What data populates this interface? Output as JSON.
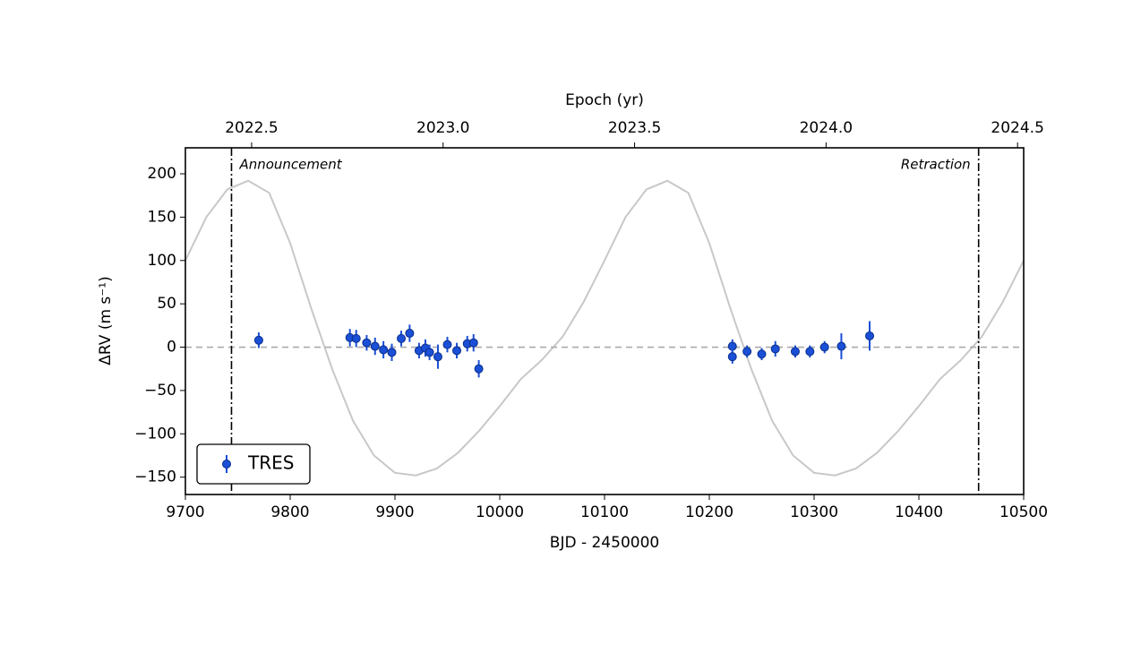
{
  "chart_data": {
    "type": "scatter",
    "xlabel": "BJD - 2450000",
    "ylabel": "ΔRV (m s⁻¹)",
    "x2label": "Epoch (yr)",
    "xlim": [
      9700,
      10500
    ],
    "xticks": [
      9700,
      9800,
      9900,
      10000,
      10100,
      10200,
      10300,
      10400,
      10500
    ],
    "ylim": [
      -170,
      230
    ],
    "yticks": [
      {
        "value": -150,
        "label": "−150"
      },
      {
        "value": -100,
        "label": "−100"
      },
      {
        "value": -50,
        "label": "−50"
      },
      0,
      50,
      100,
      150,
      200
    ],
    "x2lim": [
      2022.327,
      2024.516
    ],
    "x2ticks": [
      2022.5,
      {
        "value": 2023,
        "label": "2023.0"
      },
      2023.5,
      {
        "value": 2024,
        "label": "2024.0"
      },
      2024.5
    ],
    "legend": "lower left",
    "series": [
      {
        "name": "TRES",
        "color": "#1a4fd6",
        "x": [
          9770,
          9857,
          9863,
          9873,
          9881,
          9889,
          9897,
          9906,
          9914,
          9923,
          9929,
          9933,
          9941,
          9950,
          9959,
          9969,
          9975,
          9980,
          10222,
          10222,
          10236,
          10250,
          10263,
          10282,
          10296,
          10310,
          10326,
          10353
        ],
        "values": [
          8,
          11,
          10,
          5,
          1,
          -3,
          -6,
          10,
          16,
          -4,
          -1,
          -6,
          -11,
          3,
          -4,
          4,
          5,
          -25,
          1,
          -11,
          -5,
          -8,
          -2,
          -5,
          -5,
          0,
          1,
          13
        ],
        "errors": [
          9,
          10,
          10,
          9,
          10,
          10,
          10,
          9,
          10,
          9,
          10,
          9,
          14,
          9,
          9,
          9,
          10,
          10,
          8,
          8,
          7,
          7,
          9,
          7,
          7,
          7,
          15,
          17
        ]
      }
    ],
    "model": {
      "color": "#c8c8c8",
      "x": [
        9700,
        9720,
        9740,
        9760,
        9780,
        9800,
        9820,
        9840,
        9860,
        9880,
        9900,
        9920,
        9940,
        9960,
        9980,
        10000,
        10020,
        10040,
        10060,
        10080,
        10100,
        10120,
        10140,
        10160,
        10180,
        10200,
        10220,
        10240,
        10260,
        10280,
        10300,
        10320,
        10340,
        10360,
        10380,
        10400,
        10420,
        10440,
        10460,
        10480,
        10500
      ],
      "values": [
        100,
        150,
        182,
        192,
        178,
        120,
        45,
        -25,
        -85,
        -125,
        -145,
        -148,
        -140,
        -122,
        -97,
        -68,
        -37,
        -15,
        12,
        52,
        100,
        150,
        182,
        192,
        178,
        120,
        45,
        -25,
        -85,
        -125,
        -145,
        -148,
        -140,
        -122,
        -97,
        -68,
        -37,
        -15,
        12,
        52,
        100
      ]
    },
    "hline": 0,
    "vlines": [
      {
        "x": 9744,
        "label": "Announcement"
      },
      {
        "x": 10457,
        "label": "Retraction"
      }
    ]
  }
}
